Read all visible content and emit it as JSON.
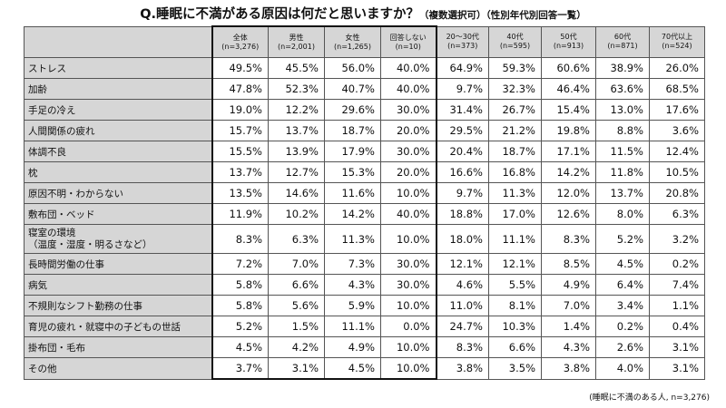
{
  "title": {
    "main": "Q.睡眠に不満がある原因は何だと思いますか？",
    "sub": "（複数選択可）（性別年代別回答一覧）"
  },
  "columns": [
    {
      "label": "全体",
      "n": "(n=3,276)"
    },
    {
      "label": "男性",
      "n": "(n=2,001)"
    },
    {
      "label": "女性",
      "n": "(n=1,265)"
    },
    {
      "label": "回答しない",
      "n": "(n=10)"
    },
    {
      "label": "20～30代",
      "n": "(n=373)"
    },
    {
      "label": "40代",
      "n": "(n=595)"
    },
    {
      "label": "50代",
      "n": "(n=913)"
    },
    {
      "label": "60代",
      "n": "(n=871)"
    },
    {
      "label": "70代以上",
      "n": "(n=524)"
    }
  ],
  "rows": [
    {
      "label": "ストレス",
      "values": [
        "49.5%",
        "45.5%",
        "56.0%",
        "40.0%",
        "64.9%",
        "59.3%",
        "60.6%",
        "38.9%",
        "26.0%"
      ]
    },
    {
      "label": "加齢",
      "values": [
        "47.8%",
        "52.3%",
        "40.7%",
        "40.0%",
        "9.7%",
        "32.3%",
        "46.4%",
        "63.6%",
        "68.5%"
      ]
    },
    {
      "label": "手足の冷え",
      "values": [
        "19.0%",
        "12.2%",
        "29.6%",
        "30.0%",
        "31.4%",
        "26.7%",
        "15.4%",
        "13.0%",
        "17.6%"
      ]
    },
    {
      "label": "人間関係の疲れ",
      "values": [
        "15.7%",
        "13.7%",
        "18.7%",
        "20.0%",
        "29.5%",
        "21.2%",
        "19.8%",
        "8.8%",
        "3.6%"
      ]
    },
    {
      "label": "体調不良",
      "values": [
        "15.5%",
        "13.9%",
        "17.9%",
        "30.0%",
        "20.4%",
        "18.7%",
        "17.1%",
        "11.5%",
        "12.4%"
      ]
    },
    {
      "label": "枕",
      "values": [
        "13.7%",
        "12.7%",
        "15.3%",
        "20.0%",
        "16.6%",
        "16.8%",
        "14.2%",
        "11.8%",
        "10.5%"
      ]
    },
    {
      "label": "原因不明・わからない",
      "values": [
        "13.5%",
        "14.6%",
        "11.6%",
        "10.0%",
        "9.7%",
        "11.3%",
        "12.0%",
        "13.7%",
        "20.8%"
      ]
    },
    {
      "label": "敷布団・ベッド",
      "values": [
        "11.9%",
        "10.2%",
        "14.2%",
        "40.0%",
        "18.8%",
        "17.0%",
        "12.6%",
        "8.0%",
        "6.3%"
      ]
    },
    {
      "label": "寝室の環境",
      "label2": "（温度・湿度・明るさなど）",
      "values": [
        "8.3%",
        "6.3%",
        "11.3%",
        "10.0%",
        "18.0%",
        "11.1%",
        "8.3%",
        "5.2%",
        "3.2%"
      ]
    },
    {
      "label": "長時間労働の仕事",
      "values": [
        "7.2%",
        "7.0%",
        "7.3%",
        "30.0%",
        "12.1%",
        "12.1%",
        "8.5%",
        "4.5%",
        "0.2%"
      ]
    },
    {
      "label": "病気",
      "values": [
        "5.8%",
        "6.6%",
        "4.3%",
        "30.0%",
        "4.6%",
        "5.5%",
        "4.9%",
        "6.4%",
        "7.4%"
      ]
    },
    {
      "label": "不規則なシフト勤務の仕事",
      "values": [
        "5.8%",
        "5.6%",
        "5.9%",
        "10.0%",
        "11.0%",
        "8.1%",
        "7.0%",
        "3.4%",
        "1.1%"
      ]
    },
    {
      "label": "育児の疲れ・就寝中の子どもの世話",
      "values": [
        "5.2%",
        "1.5%",
        "11.1%",
        "0.0%",
        "24.7%",
        "10.3%",
        "1.4%",
        "0.2%",
        "0.4%"
      ]
    },
    {
      "label": "掛布団・毛布",
      "values": [
        "4.5%",
        "4.2%",
        "4.9%",
        "10.0%",
        "8.3%",
        "6.6%",
        "4.3%",
        "2.6%",
        "3.1%"
      ]
    },
    {
      "label": "その他",
      "values": [
        "3.7%",
        "3.1%",
        "4.5%",
        "10.0%",
        "3.8%",
        "3.5%",
        "3.8%",
        "4.0%",
        "3.1%"
      ]
    }
  ],
  "footnote": "(睡眠に不満のある人, n=3,276)"
}
